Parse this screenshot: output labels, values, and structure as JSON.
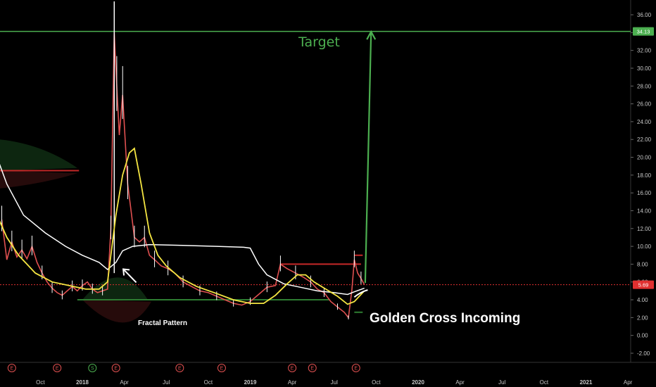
{
  "colors": {
    "background": "#000000",
    "candle_up": "#ffffff",
    "candle_down": "#e05050",
    "ma_long": "#ffffff",
    "ma_short": "#f5e642",
    "target": "#4caf50",
    "price_line": "#e03030",
    "resistance": "#c62828",
    "support": "#2e7d32",
    "arrow": "#ffffff"
  },
  "chart_data": {
    "type": "line",
    "title": "",
    "xlabel": "",
    "ylabel": "",
    "ylim": [
      -2.4,
      37.2
    ],
    "y_ticks": [
      "36.00",
      "34.00",
      "32.00",
      "30.00",
      "28.00",
      "26.00",
      "24.00",
      "22.00",
      "20.00",
      "18.00",
      "16.00",
      "14.00",
      "12.00",
      "10.00",
      "8.00",
      "6.00",
      "4.00",
      "2.00",
      "0.00",
      "-2.00"
    ],
    "x_ticks": [
      {
        "label": "Oct",
        "t": 2017.75,
        "year": false
      },
      {
        "label": "2018",
        "t": 2018.0,
        "year": true
      },
      {
        "label": "Apr",
        "t": 2018.25,
        "year": false
      },
      {
        "label": "Jul",
        "t": 2018.5,
        "year": false
      },
      {
        "label": "Oct",
        "t": 2018.75,
        "year": false
      },
      {
        "label": "2019",
        "t": 2019.0,
        "year": true
      },
      {
        "label": "Apr",
        "t": 2019.25,
        "year": false
      },
      {
        "label": "Jul",
        "t": 2019.5,
        "year": false
      },
      {
        "label": "Oct",
        "t": 2019.75,
        "year": false
      },
      {
        "label": "2020",
        "t": 2020.0,
        "year": true
      },
      {
        "label": "Apr",
        "t": 2020.25,
        "year": false
      },
      {
        "label": "Jul",
        "t": 2020.5,
        "year": false
      },
      {
        "label": "Oct",
        "t": 2020.75,
        "year": false
      },
      {
        "label": "2021",
        "t": 2021.0,
        "year": true
      },
      {
        "label": "Apr",
        "t": 2021.25,
        "year": false
      }
    ],
    "price_series": [
      [
        2017.52,
        13.0
      ],
      [
        2017.55,
        8.5
      ],
      [
        2017.58,
        10.5
      ],
      [
        2017.61,
        8.8
      ],
      [
        2017.64,
        9.6
      ],
      [
        2017.67,
        8.6
      ],
      [
        2017.7,
        10.0
      ],
      [
        2017.73,
        8.2
      ],
      [
        2017.76,
        7.0
      ],
      [
        2017.79,
        6.0
      ],
      [
        2017.82,
        5.3
      ],
      [
        2017.85,
        4.8
      ],
      [
        2017.88,
        4.5
      ],
      [
        2017.91,
        5.0
      ],
      [
        2017.94,
        5.5
      ],
      [
        2017.97,
        5.0
      ],
      [
        2018.0,
        5.6
      ],
      [
        2018.03,
        6.0
      ],
      [
        2018.06,
        5.2
      ],
      [
        2018.09,
        4.8
      ],
      [
        2018.12,
        5.0
      ],
      [
        2018.15,
        5.2
      ],
      [
        2018.17,
        12.0
      ],
      [
        2018.19,
        34.0
      ],
      [
        2018.205,
        28.0
      ],
      [
        2018.22,
        22.5
      ],
      [
        2018.24,
        27.0
      ],
      [
        2018.255,
        22.0
      ],
      [
        2018.27,
        17.0
      ],
      [
        2018.29,
        14.0
      ],
      [
        2018.31,
        11.0
      ],
      [
        2018.34,
        10.5
      ],
      [
        2018.37,
        11.0
      ],
      [
        2018.4,
        9.0
      ],
      [
        2018.43,
        8.5
      ],
      [
        2018.47,
        7.8
      ],
      [
        2018.51,
        7.5
      ],
      [
        2018.55,
        7.0
      ],
      [
        2018.6,
        6.0
      ],
      [
        2018.65,
        5.5
      ],
      [
        2018.7,
        5.0
      ],
      [
        2018.75,
        4.8
      ],
      [
        2018.8,
        4.4
      ],
      [
        2018.85,
        4.0
      ],
      [
        2018.9,
        3.6
      ],
      [
        2018.95,
        3.4
      ],
      [
        2019.0,
        3.8
      ],
      [
        2019.05,
        4.6
      ],
      [
        2019.1,
        5.4
      ],
      [
        2019.15,
        5.6
      ],
      [
        2019.18,
        8.0
      ],
      [
        2019.22,
        7.5
      ],
      [
        2019.27,
        7.0
      ],
      [
        2019.32,
        6.5
      ],
      [
        2019.36,
        6.0
      ],
      [
        2019.4,
        5.2
      ],
      [
        2019.44,
        4.8
      ],
      [
        2019.48,
        3.8
      ],
      [
        2019.52,
        3.2
      ],
      [
        2019.56,
        2.6
      ],
      [
        2019.585,
        2.0
      ],
      [
        2019.605,
        5.0
      ],
      [
        2019.62,
        8.5
      ],
      [
        2019.64,
        7.0
      ],
      [
        2019.66,
        6.4
      ],
      [
        2019.68,
        5.7
      ]
    ],
    "ma_long": [
      [
        2017.48,
        20.6
      ],
      [
        2017.55,
        17.0
      ],
      [
        2017.65,
        13.5
      ],
      [
        2017.78,
        11.5
      ],
      [
        2017.9,
        10.0
      ],
      [
        2018.0,
        9.0
      ],
      [
        2018.1,
        8.2
      ],
      [
        2018.15,
        7.4
      ],
      [
        2018.2,
        8.2
      ],
      [
        2018.24,
        9.5
      ],
      [
        2018.3,
        10.0
      ],
      [
        2018.4,
        10.2
      ],
      [
        2018.6,
        10.1
      ],
      [
        2018.8,
        10.0
      ],
      [
        2018.96,
        9.9
      ],
      [
        2019.0,
        9.8
      ],
      [
        2019.05,
        8.0
      ],
      [
        2019.1,
        6.8
      ],
      [
        2019.2,
        5.8
      ],
      [
        2019.3,
        5.4
      ],
      [
        2019.4,
        5.0
      ],
      [
        2019.5,
        4.8
      ],
      [
        2019.58,
        4.6
      ],
      [
        2019.62,
        4.9
      ],
      [
        2019.68,
        5.3
      ]
    ],
    "ma_short": [
      [
        2017.48,
        14.0
      ],
      [
        2017.55,
        11.0
      ],
      [
        2017.62,
        9.0
      ],
      [
        2017.72,
        7.0
      ],
      [
        2017.82,
        6.0
      ],
      [
        2017.92,
        5.6
      ],
      [
        2018.02,
        5.2
      ],
      [
        2018.1,
        5.2
      ],
      [
        2018.15,
        6.0
      ],
      [
        2018.17,
        9.0
      ],
      [
        2018.2,
        13.5
      ],
      [
        2018.24,
        18.0
      ],
      [
        2018.28,
        20.5
      ],
      [
        2018.31,
        21.0
      ],
      [
        2018.35,
        17.0
      ],
      [
        2018.4,
        11.5
      ],
      [
        2018.45,
        9.0
      ],
      [
        2018.5,
        7.8
      ],
      [
        2018.58,
        6.5
      ],
      [
        2018.68,
        5.5
      ],
      [
        2018.8,
        4.7
      ],
      [
        2018.9,
        4.0
      ],
      [
        2019.0,
        3.6
      ],
      [
        2019.08,
        3.6
      ],
      [
        2019.15,
        4.5
      ],
      [
        2019.22,
        5.8
      ],
      [
        2019.28,
        6.8
      ],
      [
        2019.33,
        6.8
      ],
      [
        2019.38,
        6.0
      ],
      [
        2019.45,
        5.2
      ],
      [
        2019.52,
        4.4
      ],
      [
        2019.58,
        3.5
      ],
      [
        2019.62,
        3.8
      ],
      [
        2019.66,
        4.6
      ],
      [
        2019.68,
        5.0
      ]
    ],
    "levels": [
      {
        "name": "resistance",
        "y": 18.5,
        "t0": 2017.48,
        "t1": 2017.98
      },
      {
        "name": "resistance",
        "y": 8.0,
        "t0": 2019.18,
        "t1": 2019.66
      },
      {
        "name": "resistance",
        "y": 9.0,
        "t0": 2019.62,
        "t1": 2019.67
      },
      {
        "name": "support",
        "y": 4.0,
        "t0": 2017.97,
        "t1": 2019.47
      },
      {
        "name": "support",
        "y": 2.6,
        "t0": 2019.62,
        "t1": 2019.67
      }
    ],
    "target_value": 34.13,
    "target_label": "34.13",
    "current_value": 5.69,
    "current_label": "5.69",
    "target_arrow": {
      "t0": 2019.685,
      "y0": 5.9,
      "t1": 2019.72,
      "y1": 34.1
    },
    "fractal_arrow": {
      "t0": 2018.3,
      "y0": 8.0,
      "t1": 2018.21,
      "y1": 7.6
    }
  },
  "annotations": {
    "target": "Target",
    "golden_cross": "Golden Cross Incoming",
    "fractal": "Fractal Pattern"
  },
  "events": [
    {
      "t": 2017.58,
      "label": "E",
      "kind": "earnings"
    },
    {
      "t": 2017.85,
      "label": "E",
      "kind": "earnings"
    },
    {
      "t": 2018.06,
      "label": "S",
      "kind": "split"
    },
    {
      "t": 2018.2,
      "label": "E",
      "kind": "earnings"
    },
    {
      "t": 2018.58,
      "label": "E",
      "kind": "earnings"
    },
    {
      "t": 2018.83,
      "label": "E",
      "kind": "earnings"
    },
    {
      "t": 2019.25,
      "label": "E",
      "kind": "earnings"
    },
    {
      "t": 2019.37,
      "label": "E",
      "kind": "earnings"
    },
    {
      "t": 2019.63,
      "label": "E",
      "kind": "earnings"
    }
  ]
}
